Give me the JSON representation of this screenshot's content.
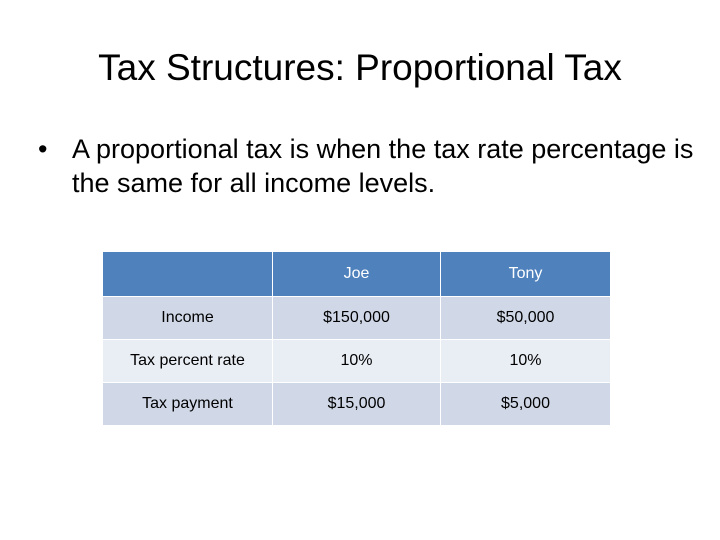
{
  "slide": {
    "title": "Tax Structures: Proportional Tax",
    "bullet": "A proportional tax is when the tax rate percentage is the same for all income levels."
  },
  "table": {
    "headers": [
      "",
      "Joe",
      "Tony"
    ],
    "rows": [
      {
        "label": "Income",
        "joe": "$150,000",
        "tony": "$50,000"
      },
      {
        "label": "Tax percent rate",
        "joe": "10%",
        "tony": "10%"
      },
      {
        "label": "Tax payment",
        "joe": "$15,000",
        "tony": "$5,000"
      }
    ]
  },
  "colors": {
    "header_fill": "#4f81bd",
    "row_fill_dark": "#d0d8e8",
    "row_fill_light": "#e9edf4"
  }
}
